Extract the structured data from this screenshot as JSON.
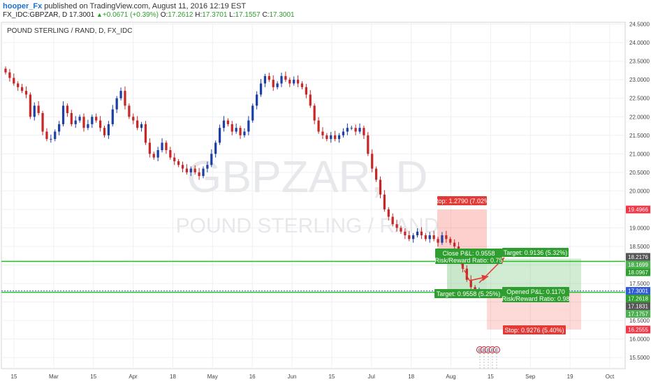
{
  "header": {
    "author": "hooper_Fx",
    "published": "published on TradingView.com, August 11, 2016 12:19 EST",
    "symbol": "FX_IDC:GBPZAR, D",
    "last": "17.3001",
    "arrow": "▲",
    "change": "+0.0671 (+0.39%)",
    "o_label": "O:",
    "o_value": "17.2612",
    "h_label": "H:",
    "h_value": "17.3701",
    "l_label": "L:",
    "l_value": "17.1557",
    "c_label": "C:",
    "c_value": "17.3001"
  },
  "chart_data": {
    "type": "candlestick",
    "title": "POUND STERLING / RAND, D, FX_IDC",
    "watermark_symbol": "GBPZAR, D",
    "watermark_name": "POUND STERLING / RAND",
    "ylim": [
      15.2,
      24.55
    ],
    "y_ticks": [
      "24.5000",
      "24.0000",
      "23.5000",
      "23.0000",
      "22.5000",
      "22.0000",
      "21.5000",
      "21.0000",
      "20.5000",
      "20.0000",
      "19.5000",
      "19.0000",
      "18.5000",
      "18.0000",
      "17.5000",
      "17.0000",
      "16.5000",
      "16.0000",
      "15.5000"
    ],
    "x_ticks": [
      "15",
      "Mar",
      "15",
      "Apr",
      "18",
      "May",
      "16",
      "Jun",
      "15",
      "Jul",
      "18",
      "Aug",
      "15",
      "Sep",
      "19",
      "Oct"
    ],
    "candle_closes": [
      23.2,
      23.05,
      22.9,
      22.8,
      22.7,
      22.6,
      22.0,
      22.3,
      22.1,
      21.6,
      21.4,
      21.4,
      21.6,
      21.8,
      22.3,
      22.1,
      21.8,
      21.9,
      22.0,
      21.7,
      21.8,
      22.0,
      21.9,
      21.7,
      21.5,
      21.8,
      22.2,
      22.5,
      22.7,
      22.3,
      22.0,
      21.9,
      21.7,
      21.8,
      21.3,
      21.0,
      20.9,
      21.1,
      21.3,
      21.1,
      20.9,
      20.8,
      20.7,
      20.6,
      20.5,
      20.6,
      20.5,
      20.4,
      20.6,
      20.7,
      21.0,
      21.3,
      21.7,
      21.9,
      21.8,
      21.6,
      21.7,
      21.5,
      21.6,
      21.9,
      22.3,
      22.6,
      22.9,
      23.1,
      23.0,
      22.8,
      22.9,
      23.1,
      23.0,
      22.9,
      23.0,
      22.9,
      22.8,
      22.6,
      22.3,
      21.9,
      21.6,
      21.5,
      21.4,
      21.5,
      21.4,
      21.5,
      21.6,
      21.7,
      21.7,
      21.6,
      21.7,
      21.5,
      21.0,
      20.6,
      20.3,
      19.9,
      19.5,
      19.3,
      19.1,
      19.0,
      18.9,
      18.8,
      18.7,
      18.8,
      18.9,
      18.8,
      18.7,
      18.8,
      18.7,
      18.6,
      18.8,
      18.7,
      18.6,
      18.5,
      18.2,
      17.9,
      17.6,
      17.4,
      17.26,
      17.3
    ],
    "lines": [
      {
        "label": "Close P&L: 0.9558",
        "value": 18.0967
      },
      {
        "label": "Opened P&L: 0.1170",
        "value": 17.2618
      },
      {
        "label": "Last",
        "value": 17.3001
      }
    ],
    "positions": [
      {
        "type": "short",
        "stop_label": "Stop: 1.2790 (7.02%)",
        "target_label": "Target: 0.9558 (5.25%)",
        "pl_label": "Close P&L: 0.9558",
        "rr_label": "Risk/Reward Ratio: 0.75",
        "entry": 18.0967,
        "stop": 19.4966,
        "target": 17.1757
      },
      {
        "type": "long",
        "stop_label": "Stop: 0.9276 (5.40%)",
        "target_label": "Target: 0.9136 (5.32%)",
        "pl_label": "Opened P&L: 0.1170",
        "rr_label": "Risk/Reward Ratio: 0.98",
        "entry": 17.2618,
        "stop": 16.2555,
        "target": 18.1699
      }
    ],
    "price_labels": [
      {
        "text": "19.4966",
        "value": 19.4966,
        "color": "#f23645"
      },
      {
        "text": "18.2176",
        "value": 18.2176,
        "color": "#555555"
      },
      {
        "text": "18.1699",
        "value": 18.1699,
        "color": "#4caf50"
      },
      {
        "text": "18.0967",
        "value": 18.0967,
        "color": "#2e9e2e"
      },
      {
        "text": "17.3001",
        "value": 17.3001,
        "color": "#2e5ad6"
      },
      {
        "text": "17.2618",
        "value": 17.2618,
        "color": "#2e9e2e"
      },
      {
        "text": "17.1831",
        "value": 17.1831,
        "color": "#555555"
      },
      {
        "text": "17.1757",
        "value": 17.1757,
        "color": "#4caf50"
      },
      {
        "text": "16.2555",
        "value": 16.2555,
        "color": "#f23645"
      }
    ],
    "events": [
      "E",
      "E",
      "E",
      "E",
      "E"
    ],
    "colors": {
      "up": "#1c3fa8",
      "down": "#c62828",
      "green": "#22c222"
    }
  }
}
